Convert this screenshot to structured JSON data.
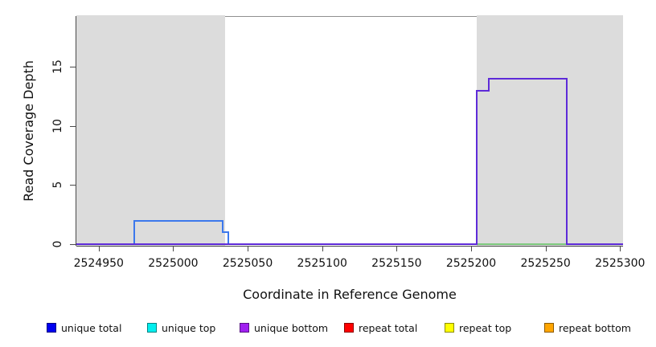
{
  "chart_data": {
    "type": "line",
    "title": "",
    "xlabel": "Coordinate in Reference Genome",
    "ylabel": "Read Coverage Depth",
    "xlim": [
      2524935,
      2525302
    ],
    "ylim": [
      0,
      19.3
    ],
    "grid": false,
    "legend_position": "bottom",
    "x_ticks": [
      2524950,
      2525000,
      2525050,
      2525100,
      2525150,
      2525200,
      2525250,
      2525300
    ],
    "y_ticks": [
      0,
      5,
      10,
      15
    ],
    "shaded_regions": [
      {
        "name": "shaded-region-left",
        "x0": 2524935,
        "x1": 2525035,
        "color": "#dcdcdc"
      },
      {
        "name": "shaded-region-right",
        "x0": 2525204,
        "x1": 2525302,
        "color": "#dcdcdc"
      }
    ],
    "series": [
      {
        "name": "unique total",
        "color": "#3c78ec",
        "points": [
          [
            2524935,
            0
          ],
          [
            2524974,
            0
          ],
          [
            2524974,
            2
          ],
          [
            2525033,
            2
          ],
          [
            2525033,
            1
          ],
          [
            2525037,
            1
          ],
          [
            2525037,
            0
          ],
          [
            2525302,
            0
          ]
        ]
      },
      {
        "name": "repeat total",
        "color": "#ee4253",
        "points": [
          [
            2524974,
            0
          ],
          [
            2525040,
            0
          ]
        ]
      },
      {
        "name": "unlabeled green segment",
        "color": "#7cc87c",
        "points": [
          [
            2525204,
            0
          ],
          [
            2525264,
            0
          ]
        ]
      },
      {
        "name": "unique bottom",
        "color": "#5e2bd8",
        "points": [
          [
            2524935,
            0
          ],
          [
            2525204,
            0
          ],
          [
            2525204,
            13
          ],
          [
            2525212,
            13
          ],
          [
            2525212,
            14
          ],
          [
            2525264,
            14
          ],
          [
            2525264,
            0
          ],
          [
            2525302,
            0
          ]
        ]
      }
    ],
    "legend": [
      {
        "label": "unique total",
        "color": "#0000f0"
      },
      {
        "label": "unique top",
        "color": "#00eeee"
      },
      {
        "label": "unique bottom",
        "color": "#a020f0"
      },
      {
        "label": "repeat total",
        "color": "#ff0000"
      },
      {
        "label": "repeat top",
        "color": "#ffff00"
      },
      {
        "label": "repeat bottom",
        "color": "#ffa500"
      }
    ],
    "frame": {
      "box_top_color": "#909090",
      "axis_color": "#4a4a4a"
    }
  }
}
